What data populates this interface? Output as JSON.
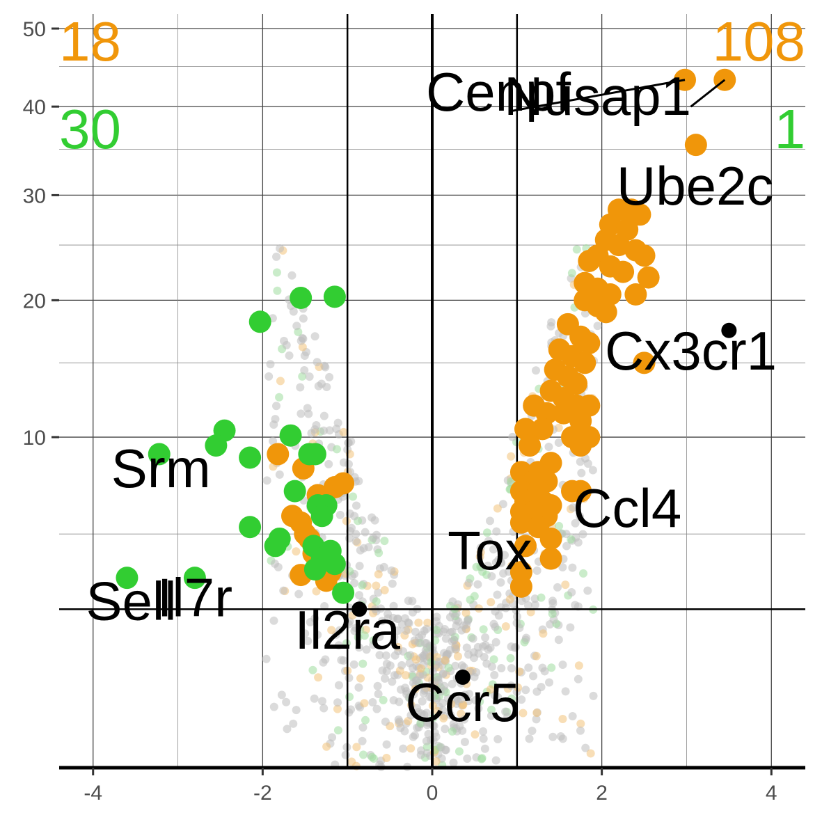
{
  "chart_data": {
    "type": "scatter",
    "title": "",
    "xlabel": "",
    "ylabel": "",
    "xlim": [
      -4.4,
      4.4
    ],
    "ylim_sqrt": [
      0,
      52
    ],
    "x_ticks": [
      -4,
      -2,
      0,
      2,
      4
    ],
    "y_ticks": [
      10,
      20,
      30,
      40,
      50
    ],
    "grid": true,
    "thresholds": {
      "fold_change": [
        -1,
        1
      ],
      "y": 2.3
    },
    "colors": {
      "up": "#f0960a",
      "down": "#32cd32",
      "background": "#bebebe",
      "highlight": "#000000"
    },
    "counts": {
      "up_left": "18",
      "up_right": "108",
      "down_left": "30",
      "down_right": "1"
    },
    "series": [
      {
        "name": "up",
        "color": "#f0960a",
        "points": [
          [
            2.98,
            43.3
          ],
          [
            3.45,
            43.3
          ],
          [
            3.11,
            35.5
          ],
          [
            2.2,
            28.5
          ],
          [
            2.35,
            28.5
          ],
          [
            2.45,
            28.0
          ],
          [
            2.1,
            27.0
          ],
          [
            2.3,
            26.5
          ],
          [
            2.05,
            25.5
          ],
          [
            2.2,
            25.0
          ],
          [
            2.4,
            24.5
          ],
          [
            2.5,
            24.0
          ],
          [
            1.95,
            24.0
          ],
          [
            1.85,
            23.5
          ],
          [
            2.1,
            23.0
          ],
          [
            2.25,
            22.5
          ],
          [
            2.55,
            22.0
          ],
          [
            1.8,
            21.5
          ],
          [
            1.95,
            21.0
          ],
          [
            2.1,
            20.5
          ],
          [
            2.4,
            20.5
          ],
          [
            1.8,
            20.0
          ],
          [
            1.95,
            19.5
          ],
          [
            2.05,
            19.0
          ],
          [
            1.6,
            18.0
          ],
          [
            1.75,
            17.0
          ],
          [
            1.85,
            16.5
          ],
          [
            1.5,
            16.0
          ],
          [
            1.65,
            15.5
          ],
          [
            1.8,
            15.0
          ],
          [
            2.5,
            15.0
          ],
          [
            1.45,
            14.5
          ],
          [
            1.6,
            14.0
          ],
          [
            1.7,
            13.5
          ],
          [
            1.4,
            13.0
          ],
          [
            1.55,
            12.5
          ],
          [
            1.7,
            12.0
          ],
          [
            1.85,
            12.0
          ],
          [
            1.2,
            12.0
          ],
          [
            1.35,
            11.5
          ],
          [
            1.55,
            11.5
          ],
          [
            1.75,
            11.0
          ],
          [
            1.1,
            10.5
          ],
          [
            1.3,
            10.5
          ],
          [
            1.65,
            10.0
          ],
          [
            1.85,
            10.0
          ],
          [
            1.15,
            9.5
          ],
          [
            1.75,
            9.5
          ],
          [
            1.4,
            8.5
          ],
          [
            1.25,
            8.0
          ],
          [
            1.05,
            8.0
          ],
          [
            1.2,
            7.5
          ],
          [
            1.35,
            7.5
          ],
          [
            1.05,
            7.0
          ],
          [
            1.25,
            7.0
          ],
          [
            1.65,
            7.0
          ],
          [
            1.75,
            7.0
          ],
          [
            1.1,
            6.5
          ],
          [
            1.3,
            6.5
          ],
          [
            1.4,
            6.3
          ],
          [
            1.05,
            6.0
          ],
          [
            1.2,
            6.0
          ],
          [
            1.35,
            5.8
          ],
          [
            1.05,
            5.5
          ],
          [
            1.25,
            5.3
          ],
          [
            1.4,
            4.8
          ],
          [
            1.1,
            4.5
          ],
          [
            1.4,
            4.0
          ],
          [
            1.05,
            3.5
          ],
          [
            1.05,
            3.0
          ],
          [
            -1.65,
            5.8
          ],
          [
            -1.55,
            5.5
          ],
          [
            -1.5,
            5.0
          ],
          [
            -1.45,
            4.8
          ],
          [
            -1.4,
            4.2
          ],
          [
            -1.3,
            4.0
          ],
          [
            -1.2,
            3.5
          ],
          [
            -1.55,
            3.4
          ],
          [
            -1.25,
            3.2
          ],
          [
            -1.82,
            9.0
          ],
          [
            -1.52,
            8.2
          ],
          [
            -1.15,
            7.2
          ],
          [
            -1.05,
            7.4
          ],
          [
            -1.35,
            6.8
          ]
        ]
      },
      {
        "name": "down",
        "color": "#32cd32",
        "points": [
          [
            -1.55,
            20.2
          ],
          [
            -1.15,
            20.3
          ],
          [
            -2.03,
            18.2
          ],
          [
            -2.45,
            10.4
          ],
          [
            -2.55,
            9.5
          ],
          [
            -3.22,
            9.0
          ],
          [
            -2.15,
            8.8
          ],
          [
            -1.67,
            10.1
          ],
          [
            -1.45,
            9.0
          ],
          [
            -1.38,
            9.0
          ],
          [
            -1.62,
            7.0
          ],
          [
            -1.35,
            6.3
          ],
          [
            -1.25,
            6.3
          ],
          [
            -1.3,
            5.8
          ],
          [
            -2.15,
            5.3
          ],
          [
            -1.8,
            4.8
          ],
          [
            -1.85,
            4.5
          ],
          [
            -1.4,
            4.5
          ],
          [
            -1.2,
            4.3
          ],
          [
            -1.3,
            4.0
          ],
          [
            -1.15,
            3.8
          ],
          [
            -1.38,
            3.6
          ],
          [
            -3.6,
            3.3
          ],
          [
            -2.8,
            3.3
          ],
          [
            -1.05,
            2.8
          ]
        ]
      },
      {
        "name": "highlight",
        "color": "#000000",
        "points": [
          [
            3.5,
            17.5
          ],
          [
            -0.86,
            2.3
          ],
          [
            0.36,
            0.75
          ]
        ]
      }
    ],
    "labels": [
      {
        "text": "Cenpf",
        "x": 0.78,
        "y": 39.5
      },
      {
        "text": "Nusap1",
        "x": 1.95,
        "y": 39.0
      },
      {
        "text": "Ube2c",
        "x": 3.1,
        "y": 29.0
      },
      {
        "text": "Cx3cr1",
        "x": 3.05,
        "y": 14.5
      },
      {
        "text": "Ccl4",
        "x": 2.3,
        "y": 5.3
      },
      {
        "text": "Tox",
        "x": 0.68,
        "y": 3.6
      },
      {
        "text": "Srm",
        "x": -3.2,
        "y": 7.2
      },
      {
        "text": "Sell",
        "x": -3.55,
        "y": 2.0
      },
      {
        "text": "Il7r",
        "x": -2.8,
        "y": 2.1
      },
      {
        "text": "Il2ra",
        "x": -1.0,
        "y": 1.3
      },
      {
        "text": "Ccr5",
        "x": 0.36,
        "y": 0.2
      }
    ],
    "connectors": [
      {
        "from": [
          2.98,
          43.3
        ],
        "to": [
          0.95,
          39.5
        ]
      },
      {
        "from": [
          3.45,
          43.3
        ],
        "to": [
          3.05,
          40.0
        ]
      }
    ]
  }
}
